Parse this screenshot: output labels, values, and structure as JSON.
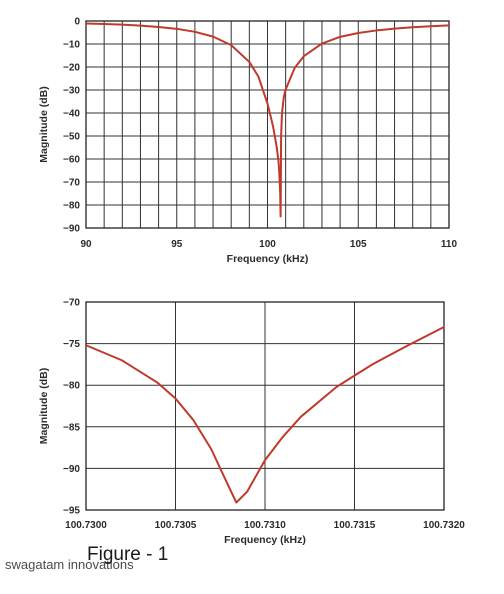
{
  "chart_data": [
    {
      "type": "line",
      "title": "",
      "xlabel": "Frequency (kHz)",
      "ylabel": "Magnitude (dB)",
      "xlim": [
        90,
        110
      ],
      "ylim": [
        -90,
        0
      ],
      "grid": true,
      "x_ticks": [
        "90",
        "95",
        "100",
        "105",
        "110"
      ],
      "y_ticks": [
        "0",
        "−10",
        "−20",
        "−30",
        "−40",
        "−50",
        "−60",
        "−70",
        "−80",
        "−90"
      ],
      "x_grid_step": 1,
      "y_grid_step": 10,
      "line_color": "#c0392b",
      "series": [
        {
          "x": [
            90,
            91,
            92,
            93,
            94,
            95,
            96,
            97,
            98,
            99,
            99.5,
            100,
            100.3,
            100.5,
            100.6,
            100.65,
            100.7,
            100.72,
            100.73,
            100.75,
            100.8,
            100.9,
            101,
            101.5,
            102,
            103,
            104,
            105,
            106,
            107,
            108,
            109,
            110
          ],
          "y": [
            -1.1,
            -1.3,
            -1.6,
            -2.0,
            -2.6,
            -3.4,
            -4.7,
            -6.8,
            -10.5,
            -17.8,
            -24.2,
            -35.9,
            -45.6,
            -54.5,
            -60.5,
            -66,
            -75,
            -85,
            -77,
            -50,
            -40,
            -33,
            -29.8,
            -20.4,
            -15.3,
            -9.8,
            -6.9,
            -5.2,
            -4.1,
            -3.3,
            -2.7,
            -2.3,
            -1.9
          ]
        }
      ]
    },
    {
      "type": "line",
      "title": "",
      "xlabel": "Frequency (kHz)",
      "ylabel": "Magnitude (dB)",
      "xlim": [
        100.73,
        100.732
      ],
      "ylim": [
        -95,
        -70
      ],
      "grid": true,
      "x_ticks": [
        "100.7300",
        "100.7305",
        "100.7310",
        "100.7315",
        "100.7320"
      ],
      "y_ticks": [
        "−70",
        "−75",
        "−80",
        "−85",
        "−90",
        "−95"
      ],
      "x_grid_step": 0.0005,
      "y_grid_step": 5,
      "line_color": "#c0392b",
      "series": [
        {
          "x": [
            100.73,
            100.7302,
            100.7304,
            100.7305,
            100.7306,
            100.7307,
            100.7308,
            100.73084,
            100.7309,
            100.731,
            100.7311,
            100.7312,
            100.7314,
            100.7316,
            100.7318,
            100.732
          ],
          "y": [
            -75.2,
            -77,
            -79.7,
            -81.6,
            -84.2,
            -87.7,
            -92.3,
            -94.1,
            -92.8,
            -89,
            -86.2,
            -83.8,
            -80.2,
            -77.5,
            -75.2,
            -73
          ]
        }
      ]
    }
  ],
  "caption": "Figure - 1",
  "watermark": "swagatam innovations"
}
